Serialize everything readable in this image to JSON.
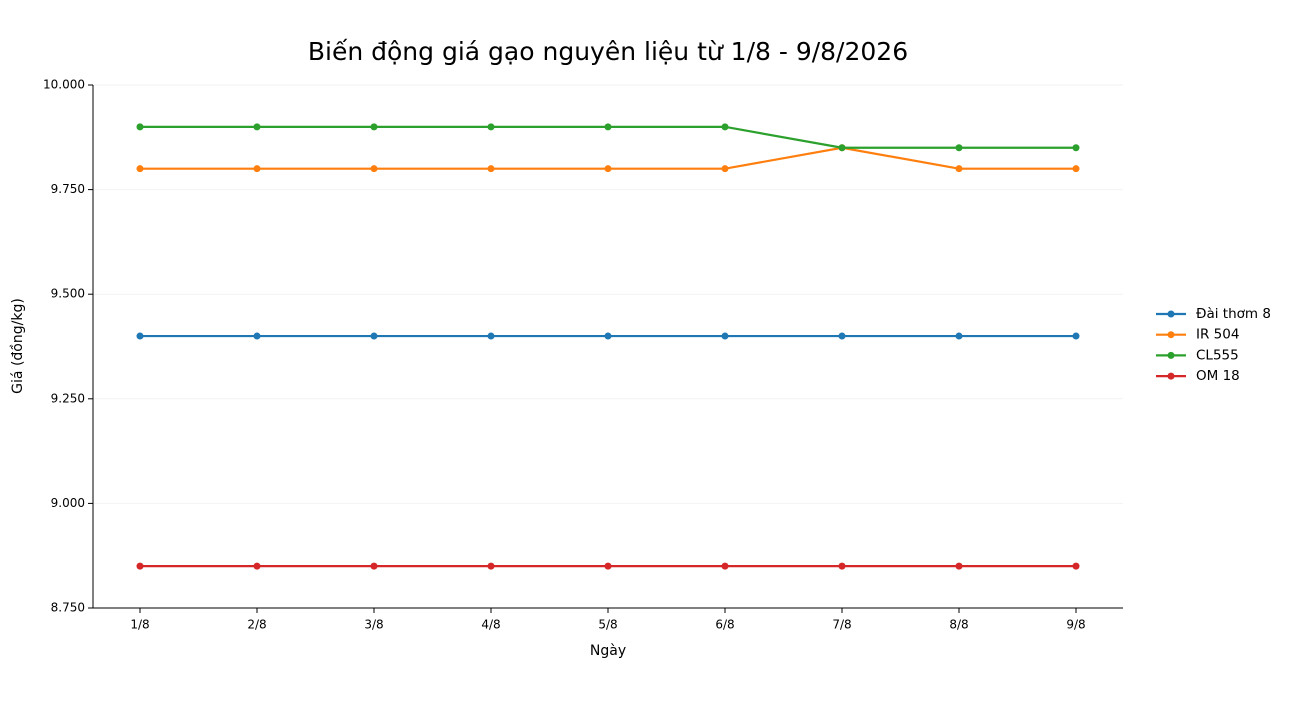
{
  "chart_data": {
    "type": "line",
    "title": "Biến động giá gạo nguyên liệu từ 1/8 - 9/8/2026",
    "x_label": "Ngày",
    "y_label": "Giá (đồng/kg)",
    "categories": [
      "1/8",
      "2/8",
      "3/8",
      "4/8",
      "5/8",
      "6/8",
      "7/8",
      "8/8",
      "9/8"
    ],
    "series": [
      {
        "name": "Đài thơm 8",
        "color": "#1f77b4",
        "values": [
          9400,
          9400,
          9400,
          9400,
          9400,
          9400,
          9400,
          9400,
          9400
        ]
      },
      {
        "name": "IR 504",
        "color": "#ff7f0e",
        "values": [
          9800,
          9800,
          9800,
          9800,
          9800,
          9800,
          9850,
          9800,
          9800
        ]
      },
      {
        "name": "CL555",
        "color": "#2ca02c",
        "values": [
          9900,
          9900,
          9900,
          9900,
          9900,
          9900,
          9850,
          9850,
          9850
        ]
      },
      {
        "name": "OM 18",
        "color": "#d62728",
        "values": [
          8850,
          8850,
          8850,
          8850,
          8850,
          8850,
          8850,
          8850,
          8850
        ]
      }
    ],
    "ylim": [
      8750,
      10000
    ],
    "yticks": [
      {
        "value": 8750,
        "label": "8.750"
      },
      {
        "value": 9000,
        "label": "9.000"
      },
      {
        "value": 9250,
        "label": "9.250"
      },
      {
        "value": 9500,
        "label": "9.500"
      },
      {
        "value": 9750,
        "label": "9.750"
      },
      {
        "value": 10000,
        "label": "10.000"
      }
    ],
    "grid": true,
    "legend": "right"
  }
}
